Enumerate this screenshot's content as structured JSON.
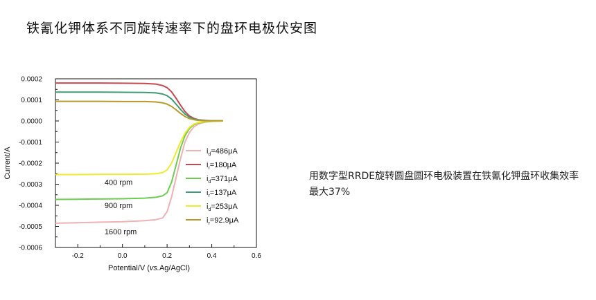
{
  "slide_title": "铁氰化钾体系不同旋转速率下的盘环电极伏安图",
  "note": "用数字型RRDE旋转圆盘圆环电极装置在铁氰化钾盘环收集效率最大37%",
  "chart_data": {
    "type": "line",
    "title": "",
    "xlabel_prefix": "Potential/V (",
    "xlabel_italic": "vs.",
    "xlabel_suffix": "Ag/AgCl)",
    "ylabel": "Current/A",
    "xlim": [
      -0.3,
      0.6
    ],
    "ylim": [
      -0.0006,
      0.0002
    ],
    "x_ticks": [
      -0.2,
      0.0,
      0.2,
      0.4,
      0.6
    ],
    "x_tick_labels": [
      "-0.2",
      "0.0",
      "0.2",
      "0.4",
      "0.6"
    ],
    "y_ticks": [
      0.0002,
      0.0001,
      0.0,
      -0.0001,
      -0.0002,
      -0.0003,
      -0.0004,
      -0.0005,
      -0.0006
    ],
    "y_tick_labels": [
      "0.0002",
      "0.0001",
      "0.0000",
      "-0.0001",
      "-0.0002",
      "-0.0003",
      "-0.0004",
      "-0.0005",
      "-0.0006"
    ],
    "annotations": [
      {
        "text": "400 rpm",
        "x": -0.08,
        "y": -0.000303
      },
      {
        "text": "900 rpm",
        "x": -0.08,
        "y": -0.000413
      },
      {
        "text": "1600 rpm",
        "x": -0.08,
        "y": -0.000538
      }
    ],
    "legend_position": "right",
    "series": [
      {
        "name_main": "i",
        "name_sub": "d",
        "name_rest": "=486μA",
        "color": "#f0b1b4",
        "rpm": "1600 rpm",
        "x": [
          -0.3,
          -0.2,
          -0.1,
          0.0,
          0.1,
          0.15,
          0.18,
          0.2,
          0.22,
          0.24,
          0.26,
          0.28,
          0.3,
          0.32,
          0.34,
          0.37,
          0.4,
          0.45
        ],
        "y": [
          -0.000485,
          -0.000483,
          -0.00048,
          -0.000478,
          -0.000473,
          -0.000468,
          -0.00046,
          -0.00043,
          -0.00036,
          -0.00027,
          -0.00018,
          -0.0001,
          -5.5e-05,
          -2.8e-05,
          -1.4e-05,
          -6e-06,
          -2e-06,
          0.0
        ]
      },
      {
        "name_main": "i",
        "name_sub": "r",
        "name_rest": "=180μA",
        "color": "#c8484f",
        "rpm": "1600 rpm",
        "x": [
          -0.3,
          -0.2,
          -0.1,
          0.0,
          0.1,
          0.15,
          0.18,
          0.2,
          0.22,
          0.24,
          0.26,
          0.28,
          0.3,
          0.32,
          0.34,
          0.37,
          0.4,
          0.45
        ],
        "y": [
          0.00018,
          0.00018,
          0.00018,
          0.000179,
          0.000178,
          0.000175,
          0.000168,
          0.000158,
          0.000138,
          0.000108,
          7.5e-05,
          4.5e-05,
          2.4e-05,
          1.2e-05,
          6e-06,
          3e-06,
          1e-06,
          1e-06
        ]
      },
      {
        "name_main": "i",
        "name_sub": "d",
        "name_rest": "=371μA",
        "color": "#6ccc4e",
        "rpm": "900 rpm",
        "x": [
          -0.3,
          -0.2,
          -0.1,
          0.0,
          0.1,
          0.15,
          0.18,
          0.2,
          0.22,
          0.24,
          0.26,
          0.28,
          0.3,
          0.32,
          0.34,
          0.37,
          0.4,
          0.45
        ],
        "y": [
          -0.000372,
          -0.000371,
          -0.00037,
          -0.000369,
          -0.000366,
          -0.000362,
          -0.000355,
          -0.00034,
          -0.00029,
          -0.00021,
          -0.00013,
          -7e-05,
          -3.6e-05,
          -1.8e-05,
          -9e-06,
          -4e-06,
          -2e-06,
          0.0
        ]
      },
      {
        "name_main": "i",
        "name_sub": "r",
        "name_rest": "=137μA",
        "color": "#3e9c74",
        "rpm": "900 rpm",
        "x": [
          -0.3,
          -0.2,
          -0.1,
          0.0,
          0.1,
          0.15,
          0.18,
          0.2,
          0.22,
          0.24,
          0.26,
          0.28,
          0.3,
          0.32,
          0.34,
          0.37,
          0.4,
          0.45
        ],
        "y": [
          0.000137,
          0.000137,
          0.000137,
          0.000136,
          0.000135,
          0.000133,
          0.000128,
          0.00012,
          0.000104,
          8e-05,
          5.5e-05,
          3.3e-05,
          1.8e-05,
          9e-06,
          5e-06,
          2e-06,
          1e-06,
          1e-06
        ]
      },
      {
        "name_main": "i",
        "name_sub": "d",
        "name_rest": "=253μA",
        "color": "#ecec2a",
        "rpm": "400 rpm",
        "x": [
          -0.3,
          -0.2,
          -0.1,
          0.0,
          0.1,
          0.15,
          0.18,
          0.2,
          0.22,
          0.24,
          0.26,
          0.28,
          0.3,
          0.32,
          0.34,
          0.37,
          0.4,
          0.45
        ],
        "y": [
          -0.000254,
          -0.000254,
          -0.000253,
          -0.000253,
          -0.000252,
          -0.00025,
          -0.000245,
          -0.000232,
          -0.0002,
          -0.00015,
          -0.0001,
          -5.8e-05,
          -3e-05,
          -1.5e-05,
          -7e-06,
          -3e-06,
          -1e-06,
          0.0
        ]
      },
      {
        "name_main": "i",
        "name_sub": "r",
        "name_rest": "=92.9μA",
        "color": "#b89a2c",
        "rpm": "400 rpm",
        "x": [
          -0.3,
          -0.2,
          -0.1,
          0.0,
          0.1,
          0.15,
          0.18,
          0.2,
          0.22,
          0.24,
          0.26,
          0.28,
          0.3,
          0.32,
          0.34,
          0.37,
          0.4,
          0.45
        ],
        "y": [
          9.3e-05,
          9.3e-05,
          9.3e-05,
          9.2e-05,
          9.2e-05,
          9e-05,
          8.6e-05,
          8e-05,
          6.9e-05,
          5.3e-05,
          3.6e-05,
          2.1e-05,
          1.1e-05,
          6e-06,
          3e-06,
          1e-06,
          1e-06,
          1e-06
        ]
      }
    ]
  }
}
